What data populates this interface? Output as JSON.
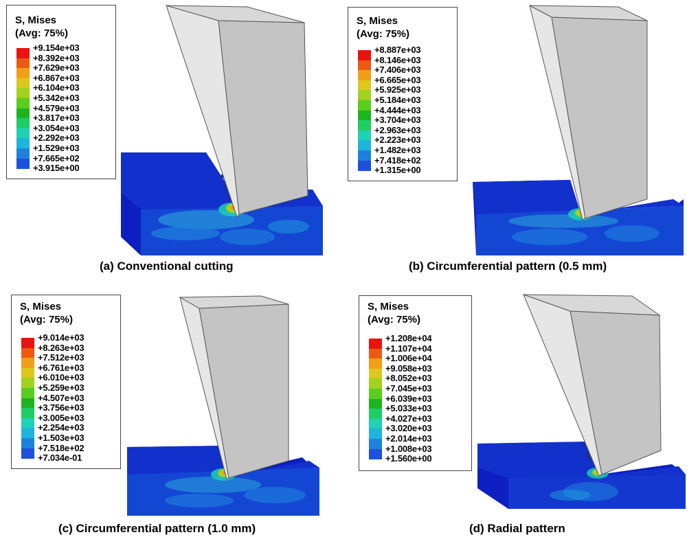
{
  "colors": [
    "#e81410",
    "#ec5a12",
    "#f0a018",
    "#dcc81e",
    "#a0d21e",
    "#5acd1e",
    "#1eb41e",
    "#1ecd64",
    "#1ed2b4",
    "#1eb4dc",
    "#1e82dc",
    "#1e50dc",
    "#0a14c8"
  ],
  "panels": [
    {
      "legend_title": "S, Mises",
      "legend_subtitle": "(Avg: 75%)",
      "values": [
        "+9.154e+03",
        "+8.392e+03",
        "+7.629e+03",
        "+6.867e+03",
        "+6.104e+03",
        "+5.342e+03",
        "+4.579e+03",
        "+3.817e+03",
        "+3.054e+03",
        "+2.292e+03",
        "+1.529e+03",
        "+7.665e+02",
        "+3.915e+00"
      ],
      "caption": "(a) Conventional cutting"
    },
    {
      "legend_title": "S, Mises",
      "legend_subtitle": "(Avg: 75%)",
      "values": [
        "+8.887e+03",
        "+8.146e+03",
        "+7.406e+03",
        "+6.665e+03",
        "+5.925e+03",
        "+5.184e+03",
        "+4.444e+03",
        "+3.704e+03",
        "+2.963e+03",
        "+2.223e+03",
        "+1.482e+03",
        "+7.418e+02",
        "+1.315e+00"
      ],
      "caption": "(b) Circumferential pattern (0.5 mm)"
    },
    {
      "legend_title": "S, Mises",
      "legend_subtitle": "(Avg: 75%)",
      "values": [
        "+9.014e+03",
        "+8.263e+03",
        "+7.512e+03",
        "+6.761e+03",
        "+6.010e+03",
        "+5.259e+03",
        "+4.507e+03",
        "+3.756e+03",
        "+3.005e+03",
        "+2.254e+03",
        "+1.503e+03",
        "+7.518e+02",
        "+7.034e-01"
      ],
      "caption": "(c) Circumferential pattern (1.0 mm)"
    },
    {
      "legend_title": "S, Mises",
      "legend_subtitle": "(Avg: 75%)",
      "values": [
        "+1.208e+04",
        "+1.107e+04",
        "+1.006e+04",
        "+9.058e+03",
        "+8.052e+03",
        "+7.045e+03",
        "+6.039e+03",
        "+5.033e+03",
        "+4.027e+03",
        "+3.020e+03",
        "+2.014e+03",
        "+1.008e+03",
        "+1.560e+00"
      ],
      "caption": "(d) Radial pattern"
    }
  ]
}
